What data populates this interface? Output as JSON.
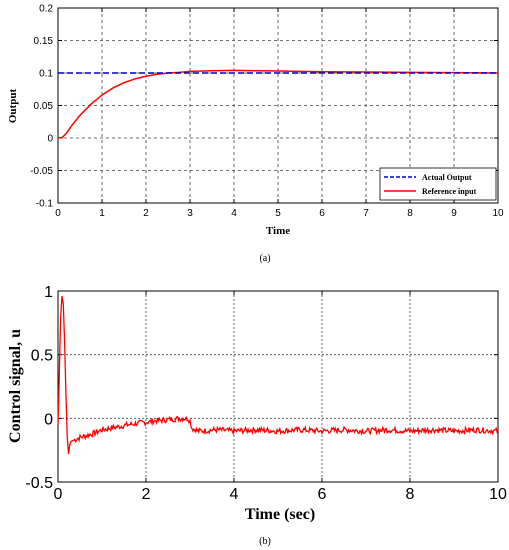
{
  "chart_data": [
    {
      "type": "line",
      "caption": "(a)",
      "xlabel": "Time",
      "ylabel": "Output",
      "xlim": [
        0,
        10
      ],
      "ylim": [
        -0.1,
        0.2
      ],
      "x_ticks": [
        "0",
        "1",
        "2",
        "3",
        "4",
        "5",
        "6",
        "7",
        "8",
        "9",
        "10"
      ],
      "y_ticks": [
        "0.2",
        "0.15",
        "0.1",
        "0.05",
        "0",
        "-0.05",
        "-0.1"
      ],
      "y_tick_values": [
        0.2,
        0.15,
        0.1,
        0.05,
        0,
        -0.05,
        -0.1
      ],
      "grid": true,
      "legend": "bottom-right",
      "series": [
        {
          "name": "Actual Output",
          "color": "#0000cc",
          "style": "dashed",
          "x": [
            0,
            10
          ],
          "y": [
            0.1,
            0.1
          ]
        },
        {
          "name": "Reference input",
          "color": "#ff0000",
          "style": "solid",
          "x": [
            0,
            0.1,
            0.2,
            0.3,
            0.5,
            0.75,
            1.0,
            1.25,
            1.5,
            1.75,
            2.0,
            2.25,
            2.5,
            2.75,
            3.0,
            3.5,
            4.0,
            4.5,
            5.0,
            5.5,
            6.0,
            7.0,
            8.0,
            9.0,
            10.0
          ],
          "y": [
            0,
            0.001,
            0.008,
            0.018,
            0.035,
            0.052,
            0.066,
            0.077,
            0.085,
            0.091,
            0.095,
            0.098,
            0.1,
            0.101,
            0.1025,
            0.1035,
            0.104,
            0.1035,
            0.103,
            0.1025,
            0.102,
            0.1015,
            0.101,
            0.1005,
            0.1
          ]
        }
      ]
    },
    {
      "type": "line",
      "caption": "(b)",
      "xlabel": "Time (sec)",
      "ylabel": "Control signal, u",
      "xlim": [
        0,
        10
      ],
      "ylim": [
        -0.5,
        1
      ],
      "x_ticks": [
        "0",
        "2",
        "4",
        "6",
        "8",
        "10"
      ],
      "x_tick_values": [
        0,
        2,
        4,
        6,
        8,
        10
      ],
      "y_ticks": [
        "1",
        "0.5",
        "0",
        "-0.5"
      ],
      "y_tick_values": [
        1,
        0.5,
        0,
        -0.5
      ],
      "grid": true,
      "series": [
        {
          "color": "#ff0000",
          "style": "solid",
          "x": [
            0,
            0.03,
            0.06,
            0.09,
            0.12,
            0.15,
            0.18,
            0.21,
            0.24,
            0.27,
            0.3,
            0.5,
            0.8,
            1.0,
            1.3,
            1.6,
            2.0,
            2.2,
            2.5,
            2.8,
            2.95,
            3.0,
            3.05,
            3.2,
            3.6,
            4.0,
            4.5,
            5.0,
            5.5,
            6.0,
            6.5,
            7.0,
            7.5,
            8.0,
            8.5,
            9.0,
            9.5,
            10.0
          ],
          "y": [
            -0.05,
            0.35,
            0.8,
            0.96,
            0.9,
            0.6,
            0.2,
            -0.15,
            -0.28,
            -0.2,
            -0.18,
            -0.15,
            -0.12,
            -0.09,
            -0.07,
            -0.05,
            -0.03,
            -0.02,
            -0.01,
            0.0,
            0.0,
            -0.02,
            -0.08,
            -0.1,
            -0.09,
            -0.1,
            -0.09,
            -0.1,
            -0.09,
            -0.1,
            -0.09,
            -0.1,
            -0.09,
            -0.1,
            -0.09,
            -0.1,
            -0.09,
            -0.1
          ]
        }
      ]
    }
  ]
}
